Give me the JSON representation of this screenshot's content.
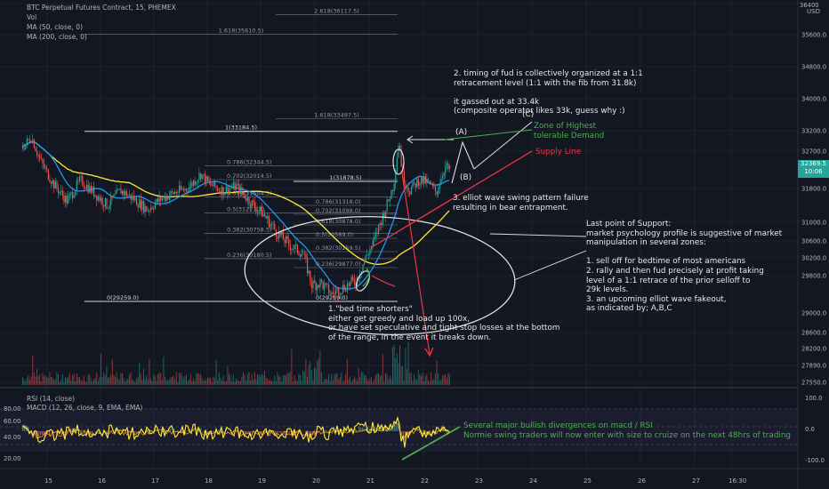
{
  "header": {
    "symbol": "BTC Perpetual Futures Contract, 15, PHEMEX",
    "vol": "Vol",
    "ma50": "MA (50, close, 0)",
    "ma200": "MA (200, close, 0)",
    "currency": "USD"
  },
  "price": {
    "current": "32369.5",
    "countdown": "10:06",
    "tag_color": "#26a69a"
  },
  "chart_data": {
    "type": "line",
    "price_axis_labels": [
      "35600.0",
      "34800.0",
      "34000.0",
      "33200.0",
      "32700.0",
      "31800.0",
      "31000.0",
      "30600.0",
      "30200.0",
      "29800.0",
      "29000.0",
      "28600.0",
      "28200.0",
      "27890.0",
      "27550.0"
    ],
    "top_price_label": "36400",
    "date_labels": [
      "15",
      "16",
      "17",
      "18",
      "19",
      "20",
      "21",
      "22",
      "23",
      "24",
      "25",
      "26",
      "27",
      "16:30"
    ],
    "fib_levels": [
      {
        "label": "2.618(36117.5)"
      },
      {
        "label": "1.618(35610.5)"
      },
      {
        "label": "1.618(33497.5)"
      },
      {
        "label": "1(33184.5)"
      },
      {
        "label": "0.786(32344.5)"
      },
      {
        "label": "0.702(32014.5)"
      },
      {
        "label": "0.618(31604.5)"
      },
      {
        "label": "0.5(31221.5)"
      },
      {
        "label": "0.382(30758.5)"
      },
      {
        "label": "0.236(30180.5)"
      },
      {
        "label": "0(29259.0)"
      },
      {
        "label": "1(31878.5)"
      },
      {
        "label": "0.786(31318.0)"
      },
      {
        "label": "0.702(31098.0)"
      },
      {
        "label": "0.618(30878.0)"
      },
      {
        "label": "0.5(30569.0)"
      },
      {
        "label": "0.382(30259.5)"
      },
      {
        "label": "0.236(29877.0)"
      },
      {
        "label": "0(29259.0)"
      }
    ],
    "wave_labels": [
      "(A)",
      "(B)",
      "(C)"
    ],
    "annotation_labels": {
      "demand": "Zone of Highest\ntolerable Demand",
      "supply": "Supply Line"
    },
    "rsi": {
      "title": "RSI (14, close)",
      "axis": [
        "80.00",
        "60.00",
        "40.00",
        "20.00"
      ]
    },
    "macd": {
      "title": "MACD (12, 26, close, 9, EMA, EMA)",
      "axis": [
        "100.0",
        "0.0",
        "-100.0"
      ]
    }
  },
  "notes": {
    "timing": "2. timing of fud is collectively organized at a 1:1\nretracement level (1:1 with the fib from 31.8k)\n\nit gassed out at 33.4k\n(composite operator likes 33k, guess why :)",
    "elliot": "3. elliot wave swing pattern failure\nresulting in bear entrapment.",
    "support": "Last point of Support:\nmarket psychology profile is suggestive of market\nmanipulation in several zones:\n\n1. sell off for bedtime of most americans\n2. rally and then fud precisely at profit taking\nlevel of a 1:1 retrace of the prior selloff to\n29k levels.\n3. an upcoming elliot wave fakeout,\nas indicated by; A,B,C",
    "bedtime": "1.\"bed time shorters\"\neither get greedy and load up 100x,\nor have set speculative and tight stop losses at the bottom\nof the range, in the event it breaks down.",
    "divergence": "Several major bullish divergences on macd / RSI\nNormie swing traders will now enter with size to cruize on the next 48hrs of trading"
  }
}
